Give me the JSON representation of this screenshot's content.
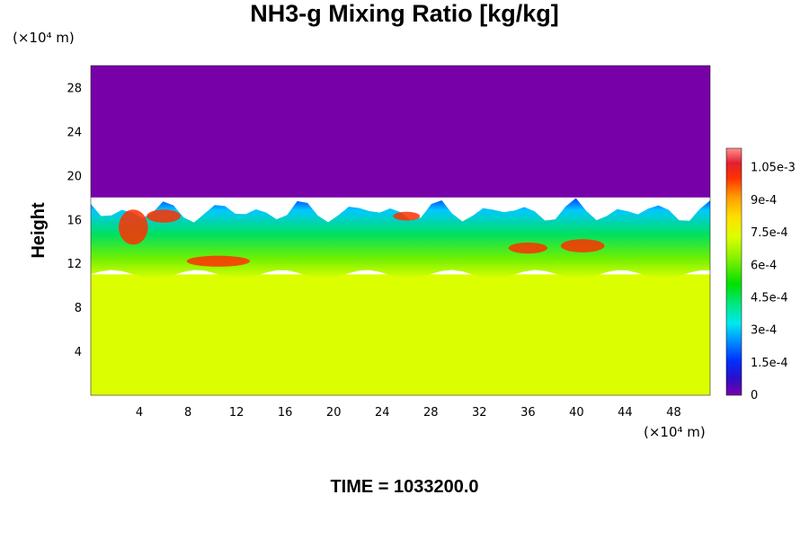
{
  "chart_data": {
    "type": "heatmap",
    "title": "NH3-g Mixing Ratio [kg/kg]",
    "xlabel": "",
    "ylabel": "Height",
    "x_unit": "(×10⁴ m)",
    "y_unit": "(×10⁴ m)",
    "x_ticks": [
      "4",
      "8",
      "12",
      "16",
      "20",
      "24",
      "28",
      "32",
      "36",
      "40",
      "44",
      "48"
    ],
    "y_ticks": [
      "4",
      "8",
      "12",
      "16",
      "20",
      "24",
      "28"
    ],
    "xlim": [
      0,
      51
    ],
    "ylim": [
      0,
      30
    ],
    "colorbar": {
      "labels": [
        "1.05e-3",
        "9e-4",
        "7.5e-4",
        "6e-4",
        "4.5e-4",
        "3e-4",
        "1.5e-4",
        "0"
      ],
      "range": [
        0,
        0.00114
      ]
    },
    "regions": [
      {
        "name": "lower layer",
        "height_range": [
          0,
          11
        ],
        "value": 0.0007
      },
      {
        "name": "mixing layer",
        "height_range": [
          11,
          18
        ],
        "value_range": [
          0.0002,
          0.0011
        ]
      },
      {
        "name": "upper layer",
        "height_range": [
          18,
          30
        ],
        "value": 0
      }
    ],
    "grid": false,
    "legend": "colorbar-right"
  },
  "footer": {
    "time_label": "TIME = 1033200.0"
  },
  "colors": {
    "upper": "#7800a8",
    "lower": "#dcff00"
  }
}
